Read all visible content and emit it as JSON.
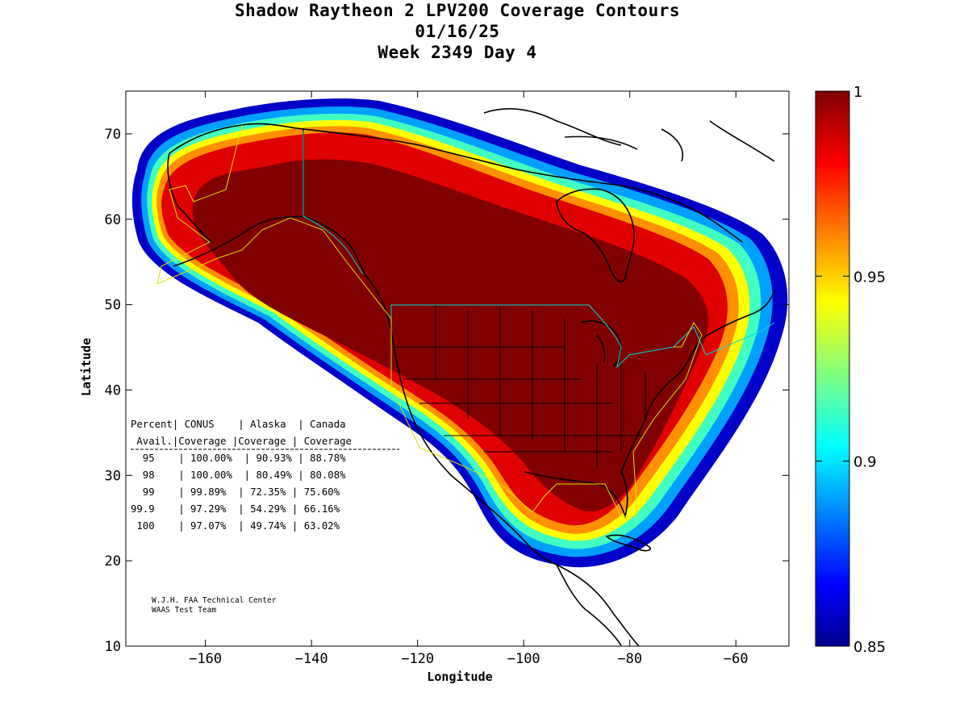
{
  "title": {
    "line1": "Shadow Raytheon 2 LPV200 Coverage Contours",
    "line2": "01/16/25",
    "line3": "Week 2349 Day 4"
  },
  "axes": {
    "xlabel": "Longitude",
    "ylabel": "Latitude",
    "xlim": [
      -175,
      -50
    ],
    "ylim": [
      10,
      75
    ],
    "xticks": [
      -160,
      -140,
      -120,
      -100,
      -80,
      -60
    ],
    "yticks": [
      10,
      20,
      30,
      40,
      50,
      60,
      70
    ]
  },
  "colorbar": {
    "min": 0.85,
    "max": 1,
    "tick_labels": [
      "1",
      "0.95",
      "0.9",
      "0.85"
    ],
    "tick_values": [
      1,
      0.95,
      0.9,
      0.85
    ],
    "colormap": "jet"
  },
  "table": {
    "header1": "Percent| CONUS    | Alaska  | Canada",
    "header2": " Avail.|Coverage |Coverage | Coverage",
    "rows": [
      "  95    | 100.00%  | 90.93% | 88.78%",
      "  98    | 100.00%  | 80.49% | 80.08%",
      "  99    | 99.89%  | 72.35% | 75.60%",
      "99.9    | 97.29%  | 54.29% | 66.16%",
      " 100    | 97.07%  | 49.74% | 63.02%"
    ]
  },
  "credits": {
    "line1": "W.J.H. FAA Technical Center",
    "line2": "WAAS Test Team"
  },
  "chart_data": {
    "type": "heatmap",
    "title": "Shadow Raytheon 2 LPV200 Coverage Contours",
    "subtitle": "01/16/25 Week 2349 Day 4",
    "xlabel": "Longitude",
    "ylabel": "Latitude",
    "xlim": [
      -175,
      -50
    ],
    "ylim": [
      10,
      75
    ],
    "value_range": [
      0.85,
      1
    ],
    "coverage_table": {
      "columns": [
        "Percent Avail.",
        "CONUS Coverage",
        "Alaska Coverage",
        "Canada Coverage"
      ],
      "rows": [
        [
          "95",
          "100.00%",
          "90.93%",
          "88.78%"
        ],
        [
          "98",
          "100.00%",
          "80.49%",
          "80.08%"
        ],
        [
          "99",
          "99.89%",
          "72.35%",
          "75.60%"
        ],
        [
          "99.9",
          "97.29%",
          "54.29%",
          "66.16%"
        ],
        [
          "100",
          "97.07%",
          "49.74%",
          "63.02%"
        ]
      ]
    }
  }
}
